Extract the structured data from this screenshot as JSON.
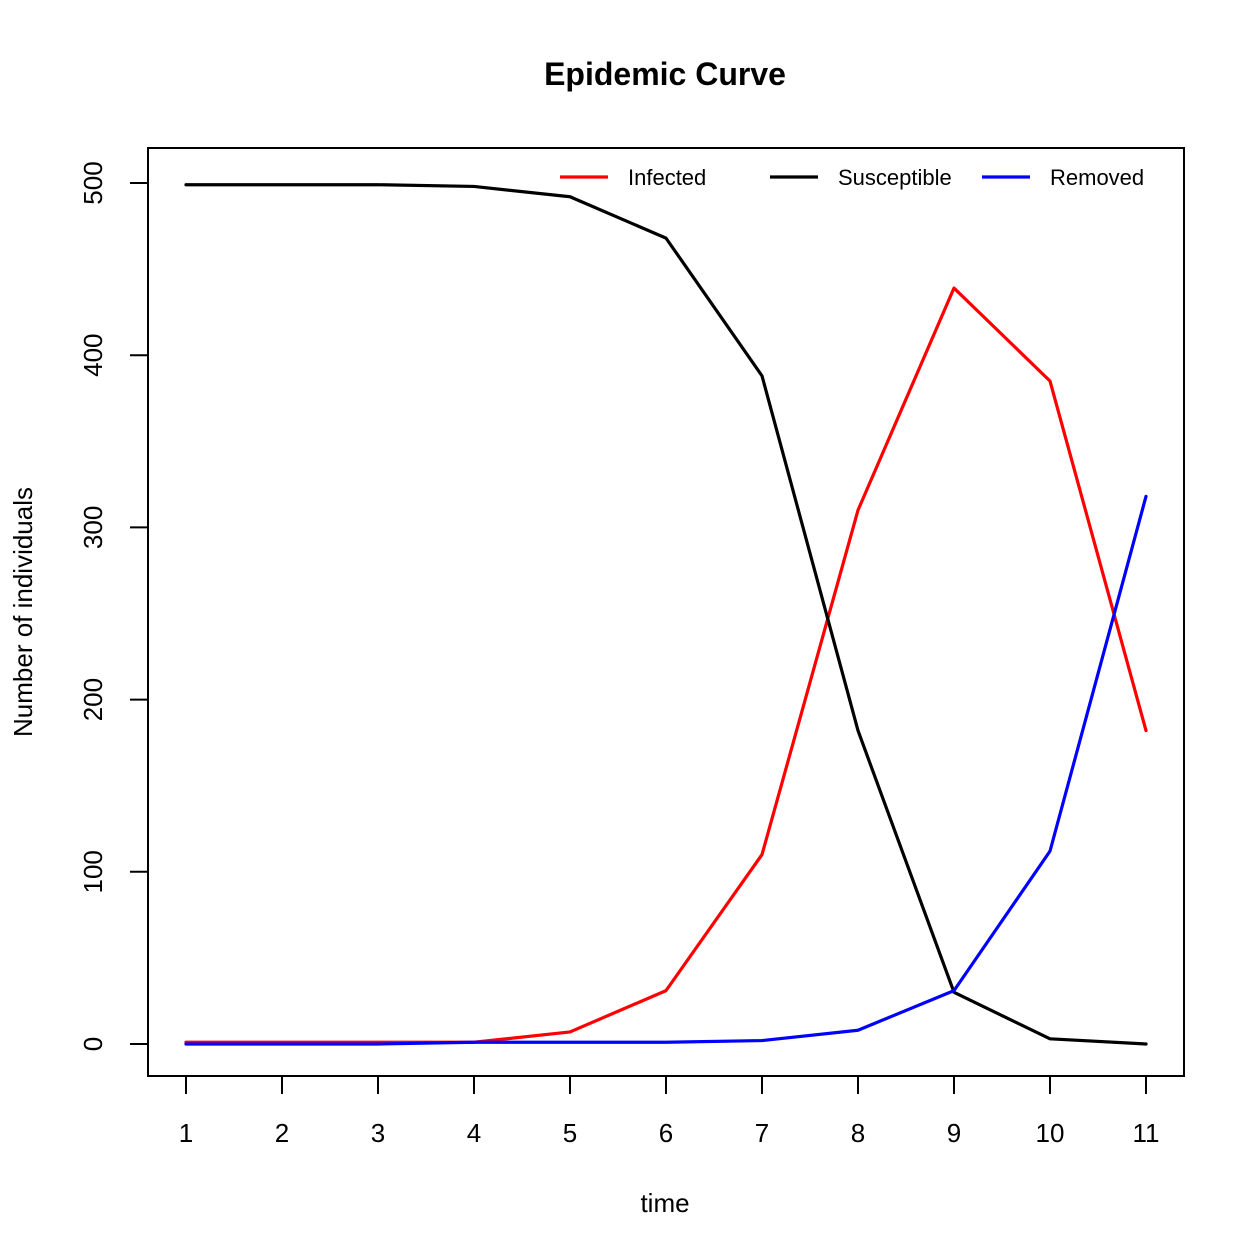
{
  "chart_data": {
    "type": "line",
    "title": "Epidemic Curve",
    "xlabel": "time",
    "ylabel": "Number of individuals",
    "x": [
      1,
      2,
      3,
      4,
      5,
      6,
      7,
      8,
      9,
      10,
      11
    ],
    "xlim": [
      1,
      11
    ],
    "ylim": [
      0,
      500
    ],
    "x_ticks": [
      1,
      2,
      3,
      4,
      5,
      6,
      7,
      8,
      9,
      10,
      11
    ],
    "y_ticks": [
      0,
      100,
      200,
      300,
      400,
      500
    ],
    "grid": false,
    "legend_position": "top-right",
    "series": [
      {
        "name": "Infected",
        "color": "#ff0000",
        "values": [
          1,
          1,
          1,
          1,
          7,
          31,
          110,
          310,
          439,
          385,
          182
        ]
      },
      {
        "name": "Susceptible",
        "color": "#000000",
        "values": [
          499,
          499,
          499,
          498,
          492,
          468,
          388,
          182,
          30,
          3,
          0
        ]
      },
      {
        "name": "Removed",
        "color": "#0000ff",
        "values": [
          0,
          0,
          0,
          1,
          1,
          1,
          2,
          8,
          31,
          112,
          318
        ]
      }
    ]
  }
}
